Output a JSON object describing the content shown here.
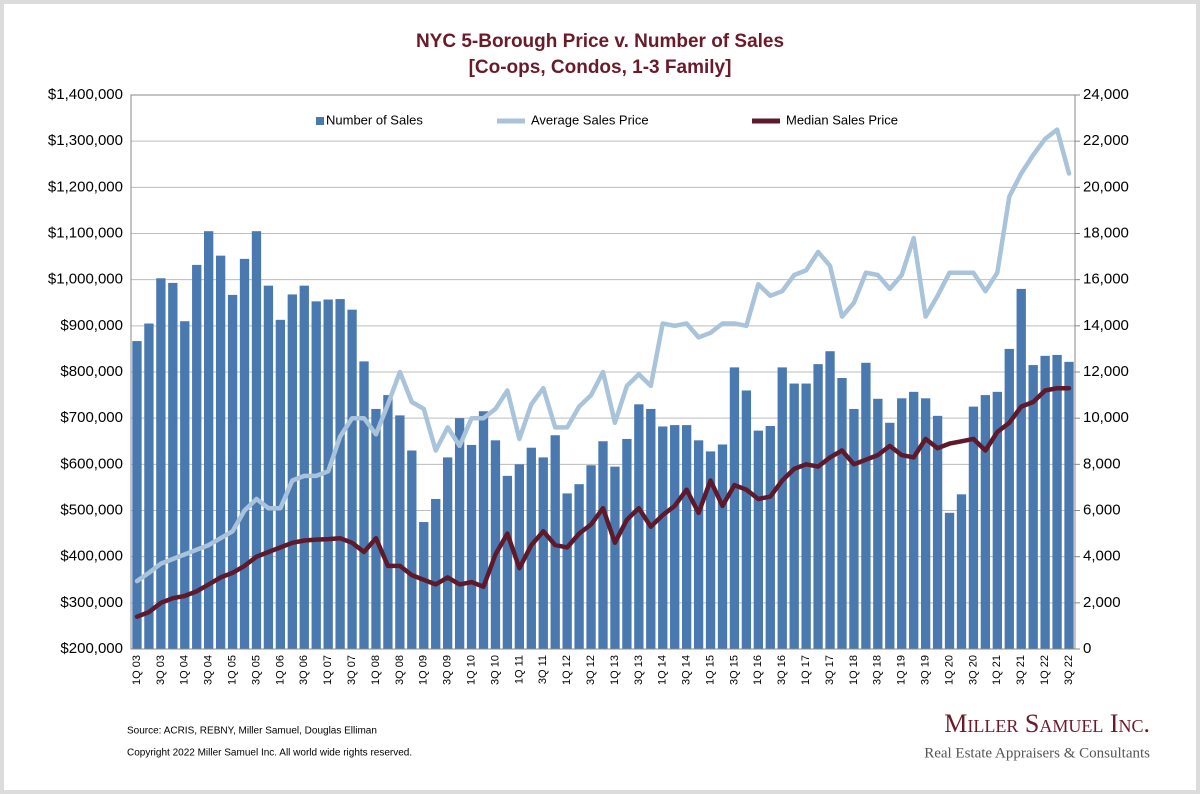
{
  "chart_data": {
    "type": "bar-line",
    "title": "NYC 5-Borough Price v. Number of Sales",
    "subtitle": "[Co-ops, Condos, 1-3 Family]",
    "categories": [
      "1Q 03",
      null,
      "3Q 03",
      null,
      "1Q 04",
      null,
      "3Q 04",
      null,
      "1Q 05",
      null,
      "3Q 05",
      null,
      "1Q 06",
      null,
      "3Q 06",
      null,
      "1Q 07",
      null,
      "3Q 07",
      null,
      "1Q 08",
      null,
      "3Q 08",
      null,
      "1Q 09",
      null,
      "3Q 09",
      null,
      "1Q 10",
      null,
      "3Q 10",
      null,
      "1Q 11",
      null,
      "3Q 11",
      null,
      "1Q 12",
      null,
      "3Q 12",
      null,
      "1Q 13",
      null,
      "3Q 13",
      null,
      "1Q 14",
      null,
      "3Q 14",
      null,
      "1Q 15",
      null,
      "3Q 15",
      null,
      "1Q 16",
      null,
      "3Q 16",
      null,
      "1Q 17",
      null,
      "3Q 17",
      null,
      "1Q 18",
      null,
      "3Q 18",
      null,
      "1Q 19",
      null,
      "3Q 19",
      null,
      "1Q 20",
      null,
      "3Q 20",
      null,
      "1Q 21",
      null,
      "3Q 21",
      null,
      "1Q 22",
      null,
      "3Q 22"
    ],
    "series": [
      {
        "name": "Number of Sales",
        "color": "#4a79b0",
        "axis": "y2",
        "kind": "bar",
        "values": [
          13340,
          14100,
          16060,
          15860,
          14200,
          16640,
          18100,
          17040,
          15340,
          16900,
          18100,
          15740,
          14260,
          15360,
          15740,
          15060,
          15140,
          15160,
          14700,
          12460,
          10400,
          11000,
          10120,
          8600,
          5500,
          6500,
          8300,
          10000,
          8840,
          10300,
          9040,
          7500,
          8000,
          8720,
          8300,
          9260,
          6740,
          7140,
          7960,
          9000,
          7900,
          9100,
          10600,
          10400,
          9640,
          9700,
          9700,
          9040,
          8560,
          8860,
          12200,
          11200,
          9460,
          9660,
          12200,
          11500,
          11500,
          12340,
          12900,
          11740,
          10400,
          12400,
          10840,
          9800,
          10860,
          11140,
          10860,
          10100,
          5900,
          6700,
          10500,
          11000,
          11140,
          13000,
          15600,
          12300,
          12700,
          12740,
          12440
        ]
      },
      {
        "name": "Average Sales Price",
        "color": "#a8c3da",
        "axis": "y",
        "kind": "line",
        "values": [
          347000,
          365000,
          385000,
          395000,
          405000,
          415000,
          425000,
          440000,
          455000,
          500000,
          525000,
          505000,
          505000,
          565000,
          575000,
          575000,
          585000,
          660000,
          700000,
          700000,
          665000,
          730000,
          800000,
          735000,
          720000,
          630000,
          680000,
          640000,
          700000,
          700000,
          720000,
          760000,
          655000,
          730000,
          765000,
          680000,
          680000,
          725000,
          750000,
          800000,
          690000,
          770000,
          795000,
          770000,
          905000,
          900000,
          905000,
          875000,
          885000,
          905000,
          905000,
          900000,
          990000,
          965000,
          975000,
          1010000,
          1020000,
          1060000,
          1030000,
          920000,
          950000,
          1015000,
          1010000,
          980000,
          1010000,
          1090000,
          920000,
          965000,
          1015000,
          1015000,
          1015000,
          975000,
          1015000,
          1180000,
          1230000,
          1270000,
          1305000,
          1325000,
          1230000
        ]
      },
      {
        "name": "Median Sales Price",
        "color": "#5e1a2a",
        "axis": "y",
        "kind": "line",
        "values": [
          270000,
          280000,
          300000,
          310000,
          315000,
          325000,
          340000,
          355000,
          365000,
          380000,
          400000,
          410000,
          420000,
          430000,
          435000,
          437000,
          438000,
          440000,
          430000,
          410000,
          440000,
          380000,
          380000,
          360000,
          350000,
          340000,
          355000,
          340000,
          345000,
          335000,
          405000,
          450000,
          375000,
          425000,
          455000,
          425000,
          420000,
          450000,
          470000,
          505000,
          430000,
          480000,
          505000,
          465000,
          490000,
          510000,
          545000,
          495000,
          565000,
          510000,
          555000,
          545000,
          525000,
          530000,
          565000,
          590000,
          600000,
          595000,
          615000,
          630000,
          600000,
          610000,
          620000,
          640000,
          620000,
          615000,
          655000,
          635000,
          645000,
          650000,
          655000,
          630000,
          670000,
          690000,
          725000,
          735000,
          760000,
          765000,
          765000
        ]
      }
    ],
    "ylim": [
      200000,
      1400000
    ],
    "yticks": [
      {
        "value": 200000,
        "label": "$200,000"
      },
      {
        "value": 300000,
        "label": "$300,000"
      },
      {
        "value": 400000,
        "label": "$400,000"
      },
      {
        "value": 500000,
        "label": "$500,000"
      },
      {
        "value": 600000,
        "label": "$600,000"
      },
      {
        "value": 700000,
        "label": "$700,000"
      },
      {
        "value": 800000,
        "label": "$800,000"
      },
      {
        "value": 900000,
        "label": "$900,000"
      },
      {
        "value": 1000000,
        "label": "$1,000,000"
      },
      {
        "value": 1100000,
        "label": "$1,100,000"
      },
      {
        "value": 1200000,
        "label": "$1,200,000"
      },
      {
        "value": 1300000,
        "label": "$1,300,000"
      },
      {
        "value": 1400000,
        "label": "$1,400,000"
      }
    ],
    "y2lim": [
      0,
      24000
    ],
    "y2ticks": [
      0,
      {
        "value": 2000,
        "label": "2,000"
      },
      {
        "value": 4000,
        "label": "4,000"
      },
      {
        "value": 6000,
        "label": "6,000"
      },
      {
        "value": 8000,
        "label": "8,000"
      },
      {
        "value": 10000,
        "label": "10,000"
      },
      {
        "value": 12000,
        "label": "12,000"
      },
      {
        "value": 14000,
        "label": "14,000"
      },
      {
        "value": 16000,
        "label": "16,000"
      },
      {
        "value": 18000,
        "label": "18,000"
      },
      {
        "value": 20000,
        "label": "20,000"
      },
      {
        "value": 22000,
        "label": "22,000"
      },
      {
        "value": 24000,
        "label": "24,000"
      }
    ],
    "grid": true,
    "legend": "top"
  },
  "source": "Source: ACRIS, REBNY, Miller Samuel, Douglas Elliman",
  "copyright": "Copyright 2022 Miller Samuel Inc.  All world wide rights reserved.",
  "logo": {
    "name": "Miller Samuel Inc.",
    "tagline": "Real Estate Appraisers & Consultants"
  }
}
